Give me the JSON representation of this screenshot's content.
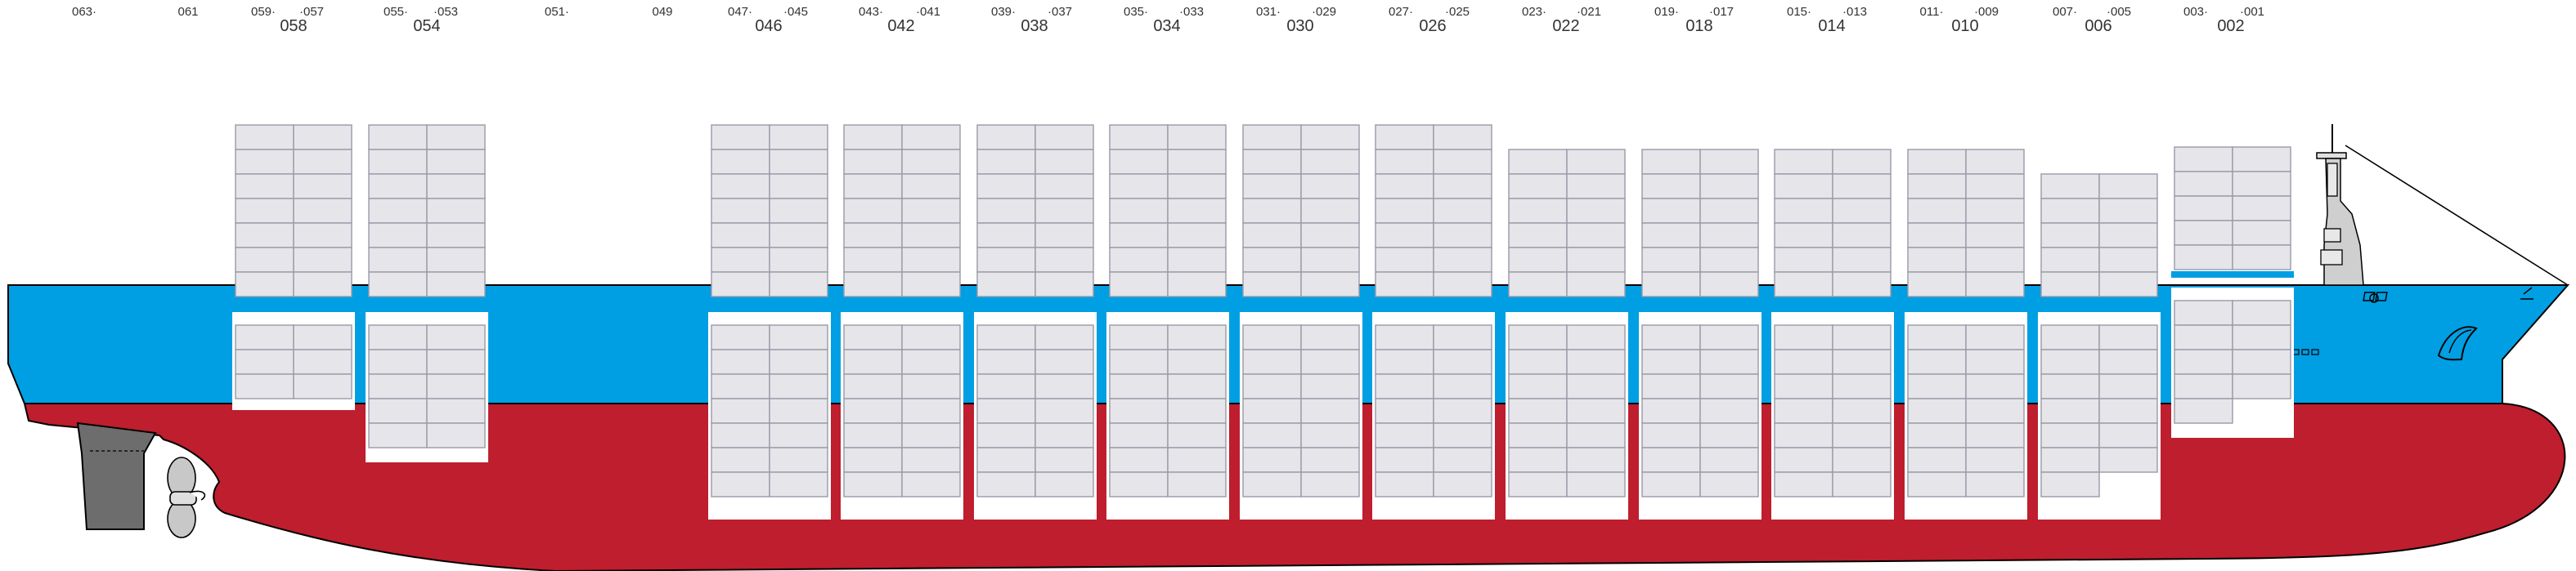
{
  "bay_labels": {
    "rows": [
      [
        "063·",
        "061",
        "059·",
        "·057",
        "055·",
        "·053",
        "051·",
        "049",
        "047·",
        "·045",
        "043·",
        "·041",
        "039·",
        "·037",
        "035·",
        "·033",
        "031·",
        "·029",
        "027·",
        "·025",
        "023·",
        "·021",
        "019·",
        "·017",
        "015·",
        "·013",
        "011·",
        "·009",
        "007·",
        "·005",
        "003·",
        "·001"
      ],
      [
        "058",
        "054",
        "046",
        "042",
        "038",
        "034",
        "030",
        "026",
        "022",
        "018",
        "014",
        "010",
        "006",
        "002"
      ]
    ]
  },
  "colors": {
    "hull_upper": "#009fe3",
    "hull_lower": "#be1e2d",
    "container_fill": "#e6e6ea",
    "container_stroke": "#9a9aa8",
    "rudder": "#6d6d6d",
    "hatch_cover": "#ffffff"
  },
  "bays": [
    {
      "label": "058",
      "deck_tiers": 7,
      "hold_tiers": 3
    },
    {
      "label": "054",
      "deck_tiers": 7,
      "hold_tiers": 5
    },
    {
      "label": "046",
      "deck_tiers": 7,
      "hold_tiers": 7
    },
    {
      "label": "042",
      "deck_tiers": 7,
      "hold_tiers": 7
    },
    {
      "label": "038",
      "deck_tiers": 7,
      "hold_tiers": 7
    },
    {
      "label": "034",
      "deck_tiers": 7,
      "hold_tiers": 7
    },
    {
      "label": "030",
      "deck_tiers": 7,
      "hold_tiers": 7
    },
    {
      "label": "026",
      "deck_tiers": 7,
      "hold_tiers": 7
    },
    {
      "label": "022",
      "deck_tiers": 6,
      "hold_tiers": 7
    },
    {
      "label": "018",
      "deck_tiers": 6,
      "hold_tiers": 7
    },
    {
      "label": "014",
      "deck_tiers": 6,
      "hold_tiers": 7
    },
    {
      "label": "010",
      "deck_tiers": 6,
      "hold_tiers": 7
    },
    {
      "label": "006",
      "deck_tiers": 5,
      "hold_tiers": 7
    },
    {
      "label": "002",
      "deck_tiers": 5,
      "hold_tiers": 5
    }
  ]
}
